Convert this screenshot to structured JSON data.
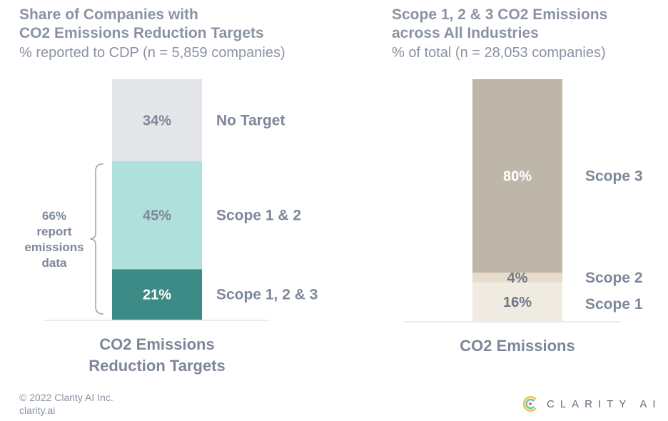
{
  "left": {
    "title_line1": "Share of Companies with",
    "title_line2": "CO2 Emissions Reduction Targets",
    "subtitle": "% reported to CDP (n = 5,859 companies)"
  },
  "right": {
    "title_line1": "Scope 1, 2 & 3 CO2 Emissions",
    "title_line2": "across All Industries",
    "subtitle": "% of total (n = 28,053 companies)"
  },
  "footer": {
    "copyright": "© 2022 Clarity AI Inc.",
    "website": "clarity.ai",
    "brand_name": "CLARITY AI",
    "brand_icon": "clarity-logo-icon"
  },
  "chart_data": [
    {
      "type": "bar",
      "stacked": true,
      "categories": [
        "CO2 Emissions\nReduction Targets"
      ],
      "xlabel_lines": [
        "CO2 Emissions",
        "Reduction Targets"
      ],
      "series": [
        {
          "name": "Scope 1, 2 & 3",
          "values": [
            21
          ],
          "label": "21%",
          "color": "#3c8b87",
          "label_color": "#ffffff"
        },
        {
          "name": "Scope 1 & 2",
          "values": [
            45
          ],
          "label": "45%",
          "color": "#b0e0dc",
          "label_color": "#7d8799"
        },
        {
          "name": "No Target",
          "values": [
            34
          ],
          "label": "34%",
          "color": "#e5e6e9",
          "label_color": "#7d8799"
        }
      ],
      "ylim": [
        0,
        100
      ],
      "annotation": {
        "lines": [
          "66%",
          "report",
          "emissions",
          "data"
        ],
        "covers": [
          "Scope 1, 2 & 3",
          "Scope 1 & 2"
        ]
      }
    },
    {
      "type": "bar",
      "stacked": true,
      "categories": [
        "CO2 Emissions"
      ],
      "xlabel_lines": [
        "CO2 Emissions"
      ],
      "series": [
        {
          "name": "Scope 1",
          "values": [
            16
          ],
          "label": "16%",
          "color": "#f0ebe1",
          "label_color": "#6f7888"
        },
        {
          "name": "Scope 2",
          "values": [
            4
          ],
          "label": "4%",
          "color": "#e6dccb",
          "label_color": "#6f7888"
        },
        {
          "name": "Scope 3",
          "values": [
            80
          ],
          "label": "80%",
          "color": "#bfb6aa",
          "label_color": "#ffffff"
        }
      ],
      "ylim": [
        0,
        100
      ]
    }
  ]
}
